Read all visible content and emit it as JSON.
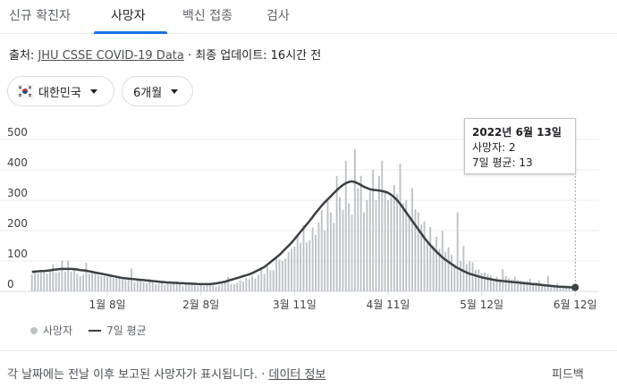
{
  "tabs": [
    {
      "label": "신규 확진자",
      "active": false
    },
    {
      "label": "사망자",
      "active": true
    },
    {
      "label": "백신 접종",
      "active": false
    },
    {
      "label": "검사",
      "active": false
    }
  ],
  "source": {
    "prefix": "출처: ",
    "link": "JHU CSSE COVID-19 Data",
    "update": " · 최종 업데이트: 16시간 전"
  },
  "filters": {
    "region": "대한민국",
    "period": "6개월"
  },
  "colors": {
    "bars": "#bdc1c6",
    "line": "#3c4043",
    "accent": "#1a73e8"
  },
  "tooltip": {
    "date": "2022년 6월 13일",
    "deaths": "사망자: 2",
    "avg": "7일 평균: 13"
  },
  "legend": {
    "deaths": "사망자",
    "avg": "7일 평균"
  },
  "footer": {
    "note": "각 날짜에는 전날 이후 보고된 사망자가 표시됩니다. · ",
    "link": "데이터 정보",
    "feedback": "피드백"
  },
  "chart_data": {
    "type": "bar",
    "title": "",
    "xlabel": "",
    "ylabel": "",
    "ylim": [
      0,
      500
    ],
    "y_ticks": [
      0,
      100,
      200,
      300,
      400,
      500
    ],
    "grid": true,
    "legend_position": "bottom-left",
    "start_date": "2021-12-14",
    "x_ticks": [
      {
        "label": "1월 8일",
        "day": 25
      },
      {
        "label": "2월 8일",
        "day": 56
      },
      {
        "label": "3월 11일",
        "day": 87
      },
      {
        "label": "4월 11일",
        "day": 118
      },
      {
        "label": "5월 12일",
        "day": 149
      },
      {
        "label": "6월 12일",
        "day": 180
      }
    ],
    "series": [
      {
        "name": "사망자",
        "type": "bar",
        "values": [
          55,
          63,
          60,
          70,
          62,
          58,
          66,
          90,
          62,
          64,
          101,
          65,
          101,
          64,
          70,
          58,
          50,
          55,
          94,
          58,
          62,
          60,
          52,
          50,
          50,
          48,
          56,
          44,
          45,
          46,
          40,
          38,
          42,
          75,
          30,
          40,
          36,
          30,
          28,
          42,
          36,
          24,
          26,
          34,
          22,
          26,
          24,
          28,
          33,
          24,
          18,
          22,
          24,
          30,
          20,
          16,
          22,
          18,
          24,
          28,
          20,
          16,
          20,
          26,
          30,
          48,
          24,
          24,
          28,
          36,
          32,
          44,
          40,
          50,
          42,
          54,
          80,
          58,
          80,
          70,
          70,
          110,
          104,
          100,
          108,
          130,
          140,
          148,
          180,
          160,
          218,
          160,
          168,
          210,
          186,
          228,
          268,
          200,
          300,
          260,
          225,
          380,
          310,
          268,
          430,
          290,
          252,
          468,
          340,
          380,
          260,
          300,
          330,
          400,
          300,
          380,
          430,
          330,
          300,
          310,
          350,
          320,
          420,
          290,
          300,
          240,
          340,
          270,
          260,
          220,
          230,
          170,
          212,
          150,
          180,
          140,
          200,
          130,
          145,
          120,
          90,
          260,
          100,
          150,
          90,
          100,
          96,
          70,
          72,
          60,
          62,
          56,
          52,
          42,
          48,
          40,
          72,
          50,
          44,
          40,
          48,
          38,
          36,
          34,
          34,
          42,
          24,
          30,
          36,
          22,
          22,
          50,
          14,
          20,
          26,
          16,
          16,
          20,
          12,
          18,
          2
        ]
      },
      {
        "name": "7일 평균",
        "type": "line",
        "values": [
          64,
          65,
          66,
          67,
          67,
          68,
          69,
          71,
          72,
          73,
          74,
          74,
          74,
          74,
          73,
          72,
          70,
          69,
          68,
          66,
          64,
          62,
          60,
          58,
          56,
          54,
          52,
          50,
          48,
          46,
          44,
          43,
          42,
          41,
          40,
          39,
          38,
          37,
          36,
          35,
          34,
          33,
          32,
          31,
          30,
          29,
          29,
          28,
          28,
          27,
          27,
          26,
          26,
          25,
          25,
          24,
          24,
          24,
          24,
          24,
          25,
          26,
          28,
          30,
          32,
          35,
          38,
          41,
          44,
          47,
          50,
          53,
          56,
          60,
          65,
          70,
          75,
          80,
          88,
          96,
          104,
          112,
          120,
          130,
          140,
          150,
          160,
          172,
          184,
          196,
          208,
          220,
          232,
          245,
          258,
          270,
          282,
          293,
          303,
          313,
          323,
          333,
          342,
          350,
          356,
          360,
          362,
          360,
          355,
          350,
          344,
          340,
          336,
          334,
          333,
          332,
          330,
          328,
          324,
          318,
          310,
          300,
          288,
          274,
          260,
          246,
          232,
          218,
          204,
          190,
          176,
          164,
          152,
          141,
          131,
          121,
          112,
          104,
          97,
          90,
          83,
          77,
          72,
          67,
          62,
          58,
          55,
          52,
          49,
          46,
          44,
          42,
          40,
          38,
          36,
          35,
          34,
          33,
          32,
          31,
          30,
          29,
          28,
          27,
          26,
          25,
          24,
          23,
          22,
          21,
          20,
          19,
          18,
          17,
          16,
          15,
          15,
          14,
          14,
          13,
          13
        ]
      }
    ]
  }
}
